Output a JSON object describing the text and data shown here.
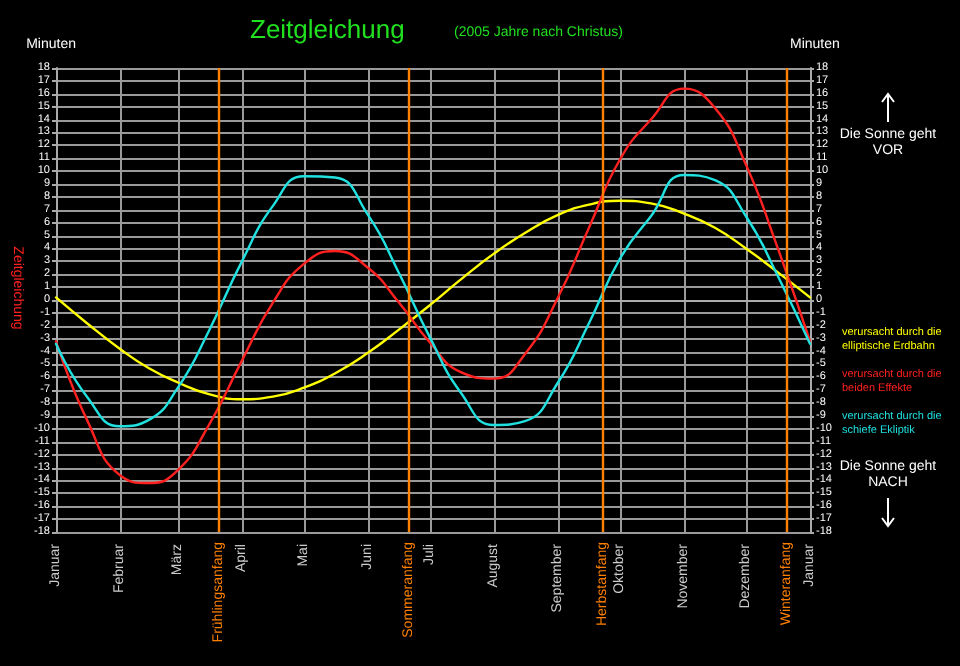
{
  "chart_data": {
    "type": "line",
    "title": "Zeitgleichung",
    "subtitle": "(2005 Jahre nach Christus)",
    "ylabel": "Minuten",
    "y2label": "Minuten",
    "x": [
      "2005-01-01",
      "2005-01-16",
      "2005-02-01",
      "2005-02-15",
      "2005-03-01",
      "2005-03-16",
      "2005-04-01",
      "2005-04-16",
      "2005-05-01",
      "2005-05-16",
      "2005-06-01",
      "2005-06-16",
      "2005-07-01",
      "2005-07-16",
      "2005-08-01",
      "2005-08-16",
      "2005-09-01",
      "2005-09-16",
      "2005-10-01",
      "2005-10-16",
      "2005-11-01",
      "2005-11-16",
      "2005-12-01",
      "2005-12-16",
      "2006-01-01"
    ],
    "series": [
      {
        "name": "verursacht durch die elliptische Erdbahn",
        "color": "#ffff00",
        "values": [
          0.2,
          -1.8,
          -3.8,
          -5.3,
          -6.4,
          -7.3,
          -7.7,
          -7.5,
          -6.8,
          -5.7,
          -4.1,
          -2.3,
          -0.4,
          1.6,
          3.6,
          5.2,
          6.6,
          7.4,
          7.7,
          7.5,
          6.7,
          5.6,
          4.0,
          2.2,
          0.2
        ]
      },
      {
        "name": "verursacht durch die beiden Effekte",
        "color": "#ff2020",
        "values": [
          -3.2,
          -9.3,
          -13.6,
          -14.2,
          -13.2,
          -9.7,
          -4.7,
          -0.2,
          2.8,
          3.8,
          2.5,
          -0.2,
          -3.3,
          -5.6,
          -6.1,
          -4.2,
          0.2,
          5.6,
          10.9,
          14.0,
          16.4,
          14.9,
          10.5,
          4.2,
          -3.2
        ]
      },
      {
        "name": "verursacht durch die schiefe Ekliptik",
        "color": "#20e0e0",
        "values": [
          -3.4,
          -7.5,
          -9.8,
          -9.3,
          -6.8,
          -2.4,
          3.0,
          7.3,
          9.6,
          9.5,
          6.6,
          2.1,
          -2.9,
          -7.2,
          -9.7,
          -9.4,
          -6.4,
          -1.8,
          3.2,
          6.5,
          9.7,
          9.3,
          6.5,
          2.0,
          -3.4
        ]
      }
    ],
    "xlim": [
      "2005-01-01",
      "2006-01-01"
    ],
    "xticks": [
      {
        "value": "2005-01-01",
        "label": "Januar"
      },
      {
        "value": "2005-02-01",
        "label": "Februar"
      },
      {
        "value": "2005-03-01",
        "label": "März"
      },
      {
        "value": "2005-04-01",
        "label": "April"
      },
      {
        "value": "2005-05-01",
        "label": "Mai"
      },
      {
        "value": "2005-06-01",
        "label": "Juni"
      },
      {
        "value": "2005-07-01",
        "label": "Juli"
      },
      {
        "value": "2005-08-01",
        "label": "August"
      },
      {
        "value": "2005-09-01",
        "label": "September"
      },
      {
        "value": "2005-10-01",
        "label": "Oktober"
      },
      {
        "value": "2005-11-01",
        "label": "November"
      },
      {
        "value": "2005-12-01",
        "label": "Dezember"
      },
      {
        "value": "2006-01-01",
        "label": "Januar"
      }
    ],
    "ylim": [
      -18,
      18
    ],
    "yticks": [
      -18,
      -17,
      -16,
      -15,
      -14,
      -13,
      -12,
      -11,
      -10,
      -9,
      -8,
      -7,
      -6,
      -5,
      -4,
      -3,
      -2,
      -1,
      0,
      1,
      2,
      3,
      4,
      5,
      6,
      7,
      8,
      9,
      10,
      11,
      12,
      13,
      14,
      15,
      16,
      17,
      18
    ],
    "y2lim": [
      -18,
      18
    ],
    "y2ticks": [
      -18,
      -17,
      -16,
      -15,
      -14,
      -13,
      -12,
      -11,
      -10,
      -9,
      -8,
      -7,
      -6,
      -5,
      -4,
      -3,
      -2,
      -1,
      0,
      1,
      2,
      3,
      4,
      5,
      6,
      7,
      8,
      9,
      10,
      11,
      12,
      13,
      14,
      15,
      16,
      17,
      18
    ],
    "ref_lines": [
      {
        "axis": "x",
        "value": "2005-03-21",
        "label": "Frühlingsanfang",
        "color": "#ff8000"
      },
      {
        "axis": "x",
        "value": "2005-06-21",
        "label": "Sommeranfang",
        "color": "#ff8000"
      },
      {
        "axis": "x",
        "value": "2005-09-23",
        "label": "Herbstanfang",
        "color": "#ff8000"
      },
      {
        "axis": "x",
        "value": "2005-12-21",
        "label": "Winteranfang",
        "color": "#ff8000"
      }
    ],
    "annotations": [
      "Zeitgleichung",
      "Die Sonne geht VOR",
      "Die Sonne geht NACH"
    ],
    "grid": true,
    "legend": "right",
    "marker": "none",
    "line_style": "solid"
  }
}
